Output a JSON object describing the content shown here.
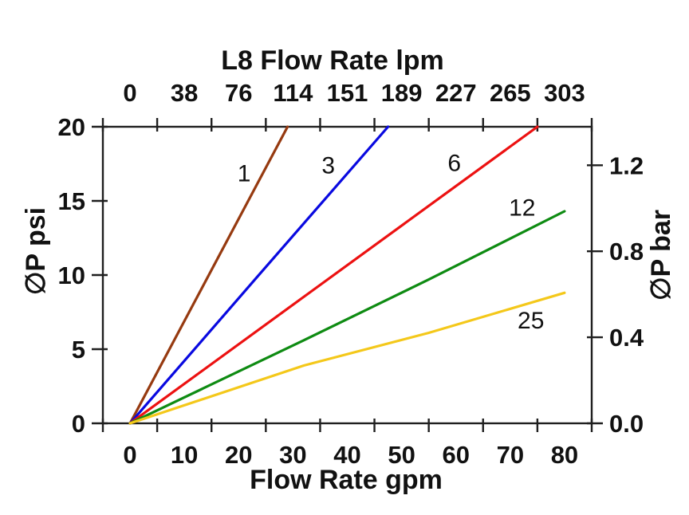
{
  "chart_data": {
    "type": "line",
    "title_top": "L8 Flow Rate lpm",
    "xlabel_bottom": "Flow Rate gpm",
    "ylabel_left": "∅P psi",
    "ylabel_right": "∅P bar",
    "x_bottom_ticks": [
      "0",
      "10",
      "20",
      "30",
      "40",
      "50",
      "60",
      "70",
      "80"
    ],
    "x_top_ticks": [
      "0",
      "38",
      "76",
      "114",
      "151",
      "189",
      "227",
      "265",
      "303"
    ],
    "y_left_ticks": [
      "0",
      "5",
      "10",
      "15",
      "20"
    ],
    "y_right_ticks": [
      "0.0",
      "0.4",
      "0.8",
      "1.2"
    ],
    "xlim": [
      0,
      80
    ],
    "ylim_psi": [
      0,
      20
    ],
    "ylim_bar": [
      0,
      1.379
    ],
    "grid": false,
    "legend": "inline-curve-labels",
    "axis_color": "#1f1f1f",
    "series": [
      {
        "label": "1",
        "color": "#963A10",
        "points_gpm_psi": [
          [
            0,
            0
          ],
          [
            29,
            20
          ]
        ],
        "label_anchor_gpm_psi": [
          21,
          16.9
        ]
      },
      {
        "label": "3",
        "color": "#0909E0",
        "points_gpm_psi": [
          [
            0,
            0
          ],
          [
            23,
            9.7
          ],
          [
            47.5,
            20
          ]
        ],
        "label_anchor_gpm_psi": [
          36.5,
          17.45
        ]
      },
      {
        "label": "6",
        "color": "#EC1111",
        "points_gpm_psi": [
          [
            0,
            0
          ],
          [
            75,
            20
          ]
        ],
        "label_anchor_gpm_psi": [
          59.7,
          17.6
        ]
      },
      {
        "label": "12",
        "color": "#0E8B12",
        "points_gpm_psi": [
          [
            0,
            0
          ],
          [
            32,
            5.6
          ],
          [
            55,
            9.7
          ],
          [
            80,
            14.3
          ]
        ],
        "label_anchor_gpm_psi": [
          72.2,
          14.6
        ]
      },
      {
        "label": "25",
        "color": "#F4C81A",
        "points_gpm_psi": [
          [
            0,
            0
          ],
          [
            32,
            3.9
          ],
          [
            55,
            6.1
          ],
          [
            80,
            8.8
          ]
        ],
        "label_anchor_gpm_psi": [
          73.8,
          7.0
        ]
      }
    ]
  }
}
